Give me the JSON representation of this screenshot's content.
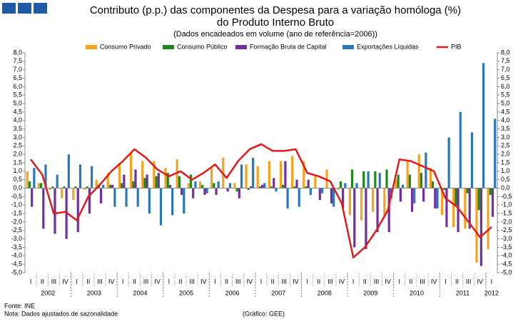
{
  "chart_data": {
    "type": "bar",
    "title": "Contributo (p.p.) das componentes da Despesa para a variação homóloga (%)",
    "title_line2": "do Produto Interno Bruto",
    "subtitle": "(Dados encadeados em volume  (ano  de referência=2006))",
    "source": "Fonte:  INE",
    "note": "Nota: Dados  ajustados  de  sazonalidade",
    "credit": "(Gráfico:  GEE)",
    "categories": [
      "I",
      "II",
      "III",
      "IV",
      "I",
      "II",
      "III",
      "IV",
      "I",
      "II",
      "III",
      "IV",
      "I",
      "II",
      "III",
      "IV",
      "I",
      "II",
      "III",
      "IV",
      "I",
      "II",
      "III",
      "IV",
      "I",
      "II",
      "III",
      "IV",
      "I",
      "II",
      "III",
      "IV",
      "I",
      "II",
      "III",
      "IV",
      "I",
      "II",
      "III",
      "IV",
      "I"
    ],
    "years": [
      "2002",
      "2003",
      "2004",
      "2005",
      "2006",
      "2007",
      "2008",
      "2009",
      "2010",
      "2011",
      "2012"
    ],
    "series": [
      {
        "name": "Consumo Privado",
        "color": "#f5a21f",
        "values": [
          1.0,
          0.3,
          -0.1,
          -0.6,
          -0.7,
          -0.1,
          0.5,
          0.9,
          1.5,
          2.1,
          1.6,
          1.6,
          1.2,
          1.7,
          0.3,
          0.4,
          1.2,
          1.8,
          0.3,
          1.4,
          1.3,
          1.6,
          1.6,
          1.9,
          1.6,
          0.8,
          1.1,
          -0.1,
          -1.6,
          -1.9,
          -1.4,
          -1.7,
          0.5,
          1.6,
          2.0,
          1.2,
          -1.6,
          -2.3,
          -2.4,
          -4.4,
          -3.6
        ]
      },
      {
        "name": "Consumo Público",
        "color": "#1b8a1b",
        "values": [
          0.4,
          0.3,
          0.1,
          0.1,
          0.1,
          0.1,
          0.2,
          0.2,
          0.3,
          0.4,
          0.6,
          0.7,
          0.9,
          0.7,
          0.8,
          0.2,
          0.3,
          0.0,
          -0.2,
          -0.1,
          0.1,
          0.1,
          0.2,
          0.1,
          0.1,
          0.0,
          0.0,
          0.4,
          1.1,
          1.0,
          1.0,
          1.1,
          0.8,
          0.8,
          0.9,
          0.4,
          -0.1,
          -1.0,
          -0.3,
          -1.3,
          -0.4
        ]
      },
      {
        "name": "Formação Bruta de Capital",
        "color": "#7030a0",
        "values": [
          -1.1,
          -2.4,
          -2.7,
          -3.0,
          -2.6,
          -1.5,
          -0.9,
          0.2,
          0.8,
          1.1,
          0.8,
          0.9,
          0.2,
          -0.4,
          -0.6,
          -0.4,
          -0.4,
          -0.2,
          -0.6,
          0.1,
          0.2,
          0.6,
          1.6,
          0.5,
          0.5,
          -0.7,
          -0.9,
          -1.2,
          -3.5,
          -3.6,
          -2.6,
          -2.6,
          -0.8,
          -1.4,
          -0.8,
          -1.2,
          -2.3,
          -2.6,
          -2.4,
          -4.6,
          -1.7
        ]
      },
      {
        "name": "Exportações  Líquidas",
        "color": "#2a78b8",
        "values": [
          1.2,
          1.4,
          0.8,
          2.0,
          1.4,
          1.3,
          0.2,
          -1.1,
          -1.1,
          -1.1,
          -1.5,
          -2.2,
          -1.6,
          -1.5,
          0.4,
          -0.3,
          0.4,
          0.3,
          1.4,
          1.8,
          0.3,
          -0.2,
          -1.2,
          -1.1,
          -0.4,
          -0.3,
          -1.1,
          0.3,
          0.3,
          1.0,
          0.9,
          -0.6,
          0.2,
          -0.9,
          2.1,
          -1.2,
          3.0,
          4.5,
          3.3,
          7.4,
          4.1
        ]
      },
      {
        "name": "PIB",
        "color": "#e31a1c",
        "type": "line",
        "values": [
          1.7,
          0.8,
          -1.5,
          -1.4,
          -1.9,
          -0.5,
          0.2,
          1.0,
          1.6,
          2.3,
          1.8,
          1.1,
          0.7,
          1.0,
          0.5,
          0.9,
          1.4,
          0.6,
          1.6,
          2.3,
          2.6,
          2.2,
          2.2,
          2.3,
          0.9,
          0.7,
          0.4,
          -0.9,
          -4.1,
          -3.5,
          -2.5,
          -1.3,
          1.7,
          1.6,
          1.3,
          1.0,
          -0.6,
          -1.1,
          -2.0,
          -2.9,
          -2.3
        ]
      }
    ],
    "ylim": [
      -5,
      8
    ],
    "yticks": [
      {
        "value": 8,
        "label": "8,0"
      },
      {
        "value": 7.5,
        "label": "7,5"
      },
      {
        "value": 7,
        "label": "7,0"
      },
      {
        "value": 6.5,
        "label": "6,5"
      },
      {
        "value": 6,
        "label": "6,0"
      },
      {
        "value": 5.5,
        "label": "5,5"
      },
      {
        "value": 5,
        "label": "5,0"
      },
      {
        "value": 4.5,
        "label": "4,5"
      },
      {
        "value": 4,
        "label": "4,0"
      },
      {
        "value": 3.5,
        "label": "3,5"
      },
      {
        "value": 3,
        "label": "3,0"
      },
      {
        "value": 2.5,
        "label": "2,5"
      },
      {
        "value": 2,
        "label": "2,0"
      },
      {
        "value": 1.5,
        "label": "1,5"
      },
      {
        "value": 1,
        "label": "1,0"
      },
      {
        "value": 0.5,
        "label": "0,5"
      },
      {
        "value": 0,
        "label": "0,0"
      },
      {
        "value": -0.5,
        "label": "-0,5"
      },
      {
        "value": -1,
        "label": "-1,0"
      },
      {
        "value": -1.5,
        "label": "-1,5"
      },
      {
        "value": -2,
        "label": "-2,0"
      },
      {
        "value": -2.5,
        "label": "-2,5"
      },
      {
        "value": -3,
        "label": "-3,0"
      },
      {
        "value": -3.5,
        "label": "-3,5"
      },
      {
        "value": -4,
        "label": "-4,0"
      },
      {
        "value": -4.5,
        "label": "-4,5"
      },
      {
        "value": -5,
        "label": "-5,0"
      }
    ],
    "y2lim": [
      -5,
      8
    ],
    "y2ticks": [
      {
        "value": 8,
        "label": "8,0"
      },
      {
        "value": 7.5,
        "label": "7,5"
      },
      {
        "value": 7,
        "label": "7,0"
      },
      {
        "value": 6.5,
        "label": "6,5"
      },
      {
        "value": 6,
        "label": "6,0"
      },
      {
        "value": 5.5,
        "label": "5,5"
      },
      {
        "value": 5,
        "label": "5,0"
      },
      {
        "value": 4.5,
        "label": "4,5"
      },
      {
        "value": 4,
        "label": "4,0"
      },
      {
        "value": 3.5,
        "label": "3,5"
      },
      {
        "value": 3,
        "label": "3,0"
      },
      {
        "value": 2.5,
        "label": "2,5"
      },
      {
        "value": 2,
        "label": "2,0"
      },
      {
        "value": 1.5,
        "label": "1,5"
      },
      {
        "value": 1,
        "label": "1,0"
      },
      {
        "value": 0.5,
        "label": "0,5"
      },
      {
        "value": 0,
        "label": "0,0"
      },
      {
        "value": -0.5,
        "label": "-0,5"
      },
      {
        "value": -1,
        "label": "-1,0"
      },
      {
        "value": -1.5,
        "label": "-1,5"
      },
      {
        "value": -2,
        "label": "-2,0"
      },
      {
        "value": -2.5,
        "label": "-2,5"
      },
      {
        "value": -3,
        "label": "-3,0"
      },
      {
        "value": -3.5,
        "label": "-3,5"
      },
      {
        "value": -4,
        "label": "-4,0"
      },
      {
        "value": -4.5,
        "label": "-4,5"
      },
      {
        "value": -5,
        "label": "-5,0"
      }
    ],
    "legend": "top",
    "grid": false
  }
}
